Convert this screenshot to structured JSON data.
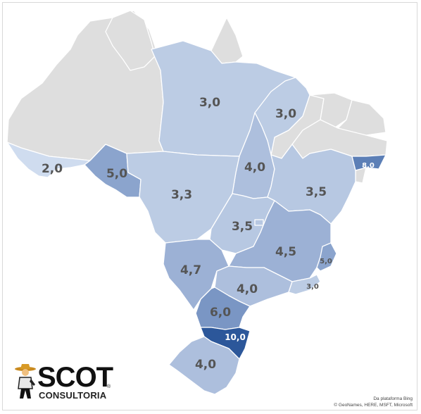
{
  "map": {
    "colors": {
      "no_data": "#dedede",
      "v2": "#cfdcef",
      "v3": "#bccce4",
      "v3_5": "#b7c8e2",
      "v4": "#adbfdd",
      "v4_5": "#9cb1d5",
      "v5": "#8ba4cd",
      "v6": "#7a96c4",
      "v8": "#5c7fb6",
      "v10": "#2c579a"
    },
    "labels": {
      "para": "3,0",
      "maranhao": "3,0",
      "acre": "2,0",
      "rondonia": "5,0",
      "tocantins": "4,0",
      "mato_grosso": "3,3",
      "bahia": "3,5",
      "goias": "3,5",
      "minas_gerais": "4,5",
      "espirito_santo": "5,0",
      "alagoas": "8,0",
      "mato_grosso_do_sul": "4,7",
      "sao_paulo": "4,0",
      "rio_de_janeiro": "3,0",
      "parana": "6,0",
      "santa_catarina": "10,0",
      "rio_grande_do_sul": "4,0"
    }
  },
  "logo": {
    "word": "SCOT",
    "subtitle": "CONSULTORIA",
    "registered": "®"
  },
  "attribution": {
    "line1": "Da plataforma Bing",
    "line2": "© GeoNames, HERE, MSFT, Microsoft"
  }
}
